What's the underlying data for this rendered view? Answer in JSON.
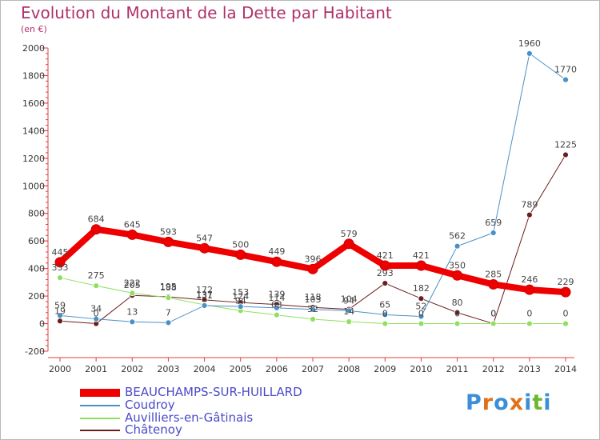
{
  "title": "Evolution du Montant de la Dette par Habitant",
  "subtitle": "(en €)",
  "logo": {
    "text": "Proxiti",
    "letters": [
      "P",
      "r",
      "o",
      "x",
      "i",
      "t",
      "i"
    ],
    "colors": [
      "#3a8fd8",
      "#e0701c",
      "#3a8fd8",
      "#e0701c",
      "#3a8fd8",
      "#6cb82c",
      "#3a8fd8"
    ]
  },
  "chart_data": {
    "type": "line",
    "title": "Evolution du Montant de la Dette par Habitant",
    "subtitle": "(en €)",
    "x": [
      2000,
      2001,
      2002,
      2003,
      2004,
      2005,
      2006,
      2007,
      2008,
      2009,
      2010,
      2011,
      2012,
      2013,
      2014
    ],
    "x_tick_labels": [
      "2000",
      "2001",
      "2002",
      "2003",
      "2004",
      "2005",
      "2006",
      "2007",
      "2008",
      "2009",
      "2010",
      "2011",
      "2012",
      "2013",
      "2014"
    ],
    "ylim": [
      -200,
      2000
    ],
    "y_ticks": [
      -200,
      0,
      200,
      400,
      600,
      800,
      1000,
      1200,
      1400,
      1600,
      1800,
      2000
    ],
    "y_tick_labels": [
      "-200",
      "0",
      "200",
      "400",
      "600",
      "800",
      "1000",
      "1200",
      "1400",
      "1600",
      "1800",
      "2000"
    ],
    "grid": false,
    "legend_position": "bottom-left",
    "series": [
      {
        "name": "BEAUCHAMPS-SUR-HUILLARD",
        "color": "#ee0000",
        "width": 8,
        "values": [
          445,
          684,
          645,
          593,
          547,
          500,
          449,
          396,
          579,
          421,
          421,
          350,
          285,
          246,
          229
        ],
        "labels": [
          "445",
          "684",
          "645",
          "593",
          "547",
          "500",
          "449",
          "396",
          "579",
          "421",
          "421",
          "350",
          "285",
          "246",
          "229"
        ]
      },
      {
        "name": "Coudroy",
        "color": "#4a90c8",
        "width": 1,
        "values": [
          59,
          34,
          13,
          7,
          131,
          124,
          114,
          103,
          94,
          65,
          52,
          562,
          659,
          1960,
          1770
        ],
        "labels": [
          "59",
          "34",
          "13",
          "7",
          "131",
          "124",
          "114",
          "103",
          "94",
          "65",
          "52",
          "562",
          "659",
          "1960",
          "1770"
        ]
      },
      {
        "name": "Auvilliers-en-Gâtinais",
        "color": "#90e060",
        "width": 1,
        "values": [
          333,
          275,
          222,
          188,
          137,
          94,
          63,
          32,
          14,
          0,
          0,
          0,
          0,
          0,
          0
        ],
        "labels": [
          "333",
          "275",
          "222",
          "188",
          "137",
          "94",
          "63",
          "32",
          "14",
          "0",
          "0",
          "0",
          "0",
          "0",
          "0"
        ]
      },
      {
        "name": "Châtenoy",
        "color": "#6a1e1e",
        "width": 1,
        "values": [
          19,
          0,
          205,
          195,
          172,
          153,
          139,
          118,
          104,
          293,
          182,
          80,
          0,
          789,
          1225
        ],
        "labels": [
          "19",
          "0",
          "205",
          "195",
          "172",
          "153",
          "139",
          "118",
          "104",
          "293",
          "182",
          "80",
          "0",
          "789",
          "1225"
        ]
      }
    ]
  }
}
